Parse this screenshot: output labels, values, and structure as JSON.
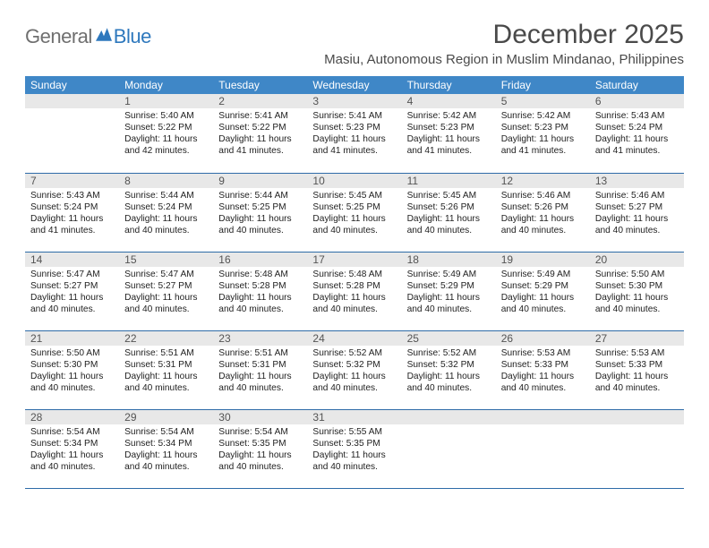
{
  "logo": {
    "text_general": "General",
    "text_blue": "Blue"
  },
  "title": "December 2025",
  "location": "Masiu, Autonomous Region in Muslim Mindanao, Philippines",
  "colors": {
    "header_blue": "#3f87c7",
    "border_blue": "#2e6ca8",
    "daynum_bg": "#e8e8e8",
    "logo_gray": "#6f6f6f",
    "logo_blue": "#2e78bd",
    "text": "#222222"
  },
  "weekdays": [
    "Sunday",
    "Monday",
    "Tuesday",
    "Wednesday",
    "Thursday",
    "Friday",
    "Saturday"
  ],
  "weeks": [
    [
      {
        "empty": true
      },
      {
        "day": "1",
        "sunrise": "Sunrise: 5:40 AM",
        "sunset": "Sunset: 5:22 PM",
        "daylight1": "Daylight: 11 hours",
        "daylight2": "and 42 minutes."
      },
      {
        "day": "2",
        "sunrise": "Sunrise: 5:41 AM",
        "sunset": "Sunset: 5:22 PM",
        "daylight1": "Daylight: 11 hours",
        "daylight2": "and 41 minutes."
      },
      {
        "day": "3",
        "sunrise": "Sunrise: 5:41 AM",
        "sunset": "Sunset: 5:23 PM",
        "daylight1": "Daylight: 11 hours",
        "daylight2": "and 41 minutes."
      },
      {
        "day": "4",
        "sunrise": "Sunrise: 5:42 AM",
        "sunset": "Sunset: 5:23 PM",
        "daylight1": "Daylight: 11 hours",
        "daylight2": "and 41 minutes."
      },
      {
        "day": "5",
        "sunrise": "Sunrise: 5:42 AM",
        "sunset": "Sunset: 5:23 PM",
        "daylight1": "Daylight: 11 hours",
        "daylight2": "and 41 minutes."
      },
      {
        "day": "6",
        "sunrise": "Sunrise: 5:43 AM",
        "sunset": "Sunset: 5:24 PM",
        "daylight1": "Daylight: 11 hours",
        "daylight2": "and 41 minutes."
      }
    ],
    [
      {
        "day": "7",
        "sunrise": "Sunrise: 5:43 AM",
        "sunset": "Sunset: 5:24 PM",
        "daylight1": "Daylight: 11 hours",
        "daylight2": "and 41 minutes."
      },
      {
        "day": "8",
        "sunrise": "Sunrise: 5:44 AM",
        "sunset": "Sunset: 5:24 PM",
        "daylight1": "Daylight: 11 hours",
        "daylight2": "and 40 minutes."
      },
      {
        "day": "9",
        "sunrise": "Sunrise: 5:44 AM",
        "sunset": "Sunset: 5:25 PM",
        "daylight1": "Daylight: 11 hours",
        "daylight2": "and 40 minutes."
      },
      {
        "day": "10",
        "sunrise": "Sunrise: 5:45 AM",
        "sunset": "Sunset: 5:25 PM",
        "daylight1": "Daylight: 11 hours",
        "daylight2": "and 40 minutes."
      },
      {
        "day": "11",
        "sunrise": "Sunrise: 5:45 AM",
        "sunset": "Sunset: 5:26 PM",
        "daylight1": "Daylight: 11 hours",
        "daylight2": "and 40 minutes."
      },
      {
        "day": "12",
        "sunrise": "Sunrise: 5:46 AM",
        "sunset": "Sunset: 5:26 PM",
        "daylight1": "Daylight: 11 hours",
        "daylight2": "and 40 minutes."
      },
      {
        "day": "13",
        "sunrise": "Sunrise: 5:46 AM",
        "sunset": "Sunset: 5:27 PM",
        "daylight1": "Daylight: 11 hours",
        "daylight2": "and 40 minutes."
      }
    ],
    [
      {
        "day": "14",
        "sunrise": "Sunrise: 5:47 AM",
        "sunset": "Sunset: 5:27 PM",
        "daylight1": "Daylight: 11 hours",
        "daylight2": "and 40 minutes."
      },
      {
        "day": "15",
        "sunrise": "Sunrise: 5:47 AM",
        "sunset": "Sunset: 5:27 PM",
        "daylight1": "Daylight: 11 hours",
        "daylight2": "and 40 minutes."
      },
      {
        "day": "16",
        "sunrise": "Sunrise: 5:48 AM",
        "sunset": "Sunset: 5:28 PM",
        "daylight1": "Daylight: 11 hours",
        "daylight2": "and 40 minutes."
      },
      {
        "day": "17",
        "sunrise": "Sunrise: 5:48 AM",
        "sunset": "Sunset: 5:28 PM",
        "daylight1": "Daylight: 11 hours",
        "daylight2": "and 40 minutes."
      },
      {
        "day": "18",
        "sunrise": "Sunrise: 5:49 AM",
        "sunset": "Sunset: 5:29 PM",
        "daylight1": "Daylight: 11 hours",
        "daylight2": "and 40 minutes."
      },
      {
        "day": "19",
        "sunrise": "Sunrise: 5:49 AM",
        "sunset": "Sunset: 5:29 PM",
        "daylight1": "Daylight: 11 hours",
        "daylight2": "and 40 minutes."
      },
      {
        "day": "20",
        "sunrise": "Sunrise: 5:50 AM",
        "sunset": "Sunset: 5:30 PM",
        "daylight1": "Daylight: 11 hours",
        "daylight2": "and 40 minutes."
      }
    ],
    [
      {
        "day": "21",
        "sunrise": "Sunrise: 5:50 AM",
        "sunset": "Sunset: 5:30 PM",
        "daylight1": "Daylight: 11 hours",
        "daylight2": "and 40 minutes."
      },
      {
        "day": "22",
        "sunrise": "Sunrise: 5:51 AM",
        "sunset": "Sunset: 5:31 PM",
        "daylight1": "Daylight: 11 hours",
        "daylight2": "and 40 minutes."
      },
      {
        "day": "23",
        "sunrise": "Sunrise: 5:51 AM",
        "sunset": "Sunset: 5:31 PM",
        "daylight1": "Daylight: 11 hours",
        "daylight2": "and 40 minutes."
      },
      {
        "day": "24",
        "sunrise": "Sunrise: 5:52 AM",
        "sunset": "Sunset: 5:32 PM",
        "daylight1": "Daylight: 11 hours",
        "daylight2": "and 40 minutes."
      },
      {
        "day": "25",
        "sunrise": "Sunrise: 5:52 AM",
        "sunset": "Sunset: 5:32 PM",
        "daylight1": "Daylight: 11 hours",
        "daylight2": "and 40 minutes."
      },
      {
        "day": "26",
        "sunrise": "Sunrise: 5:53 AM",
        "sunset": "Sunset: 5:33 PM",
        "daylight1": "Daylight: 11 hours",
        "daylight2": "and 40 minutes."
      },
      {
        "day": "27",
        "sunrise": "Sunrise: 5:53 AM",
        "sunset": "Sunset: 5:33 PM",
        "daylight1": "Daylight: 11 hours",
        "daylight2": "and 40 minutes."
      }
    ],
    [
      {
        "day": "28",
        "sunrise": "Sunrise: 5:54 AM",
        "sunset": "Sunset: 5:34 PM",
        "daylight1": "Daylight: 11 hours",
        "daylight2": "and 40 minutes."
      },
      {
        "day": "29",
        "sunrise": "Sunrise: 5:54 AM",
        "sunset": "Sunset: 5:34 PM",
        "daylight1": "Daylight: 11 hours",
        "daylight2": "and 40 minutes."
      },
      {
        "day": "30",
        "sunrise": "Sunrise: 5:54 AM",
        "sunset": "Sunset: 5:35 PM",
        "daylight1": "Daylight: 11 hours",
        "daylight2": "and 40 minutes."
      },
      {
        "day": "31",
        "sunrise": "Sunrise: 5:55 AM",
        "sunset": "Sunset: 5:35 PM",
        "daylight1": "Daylight: 11 hours",
        "daylight2": "and 40 minutes."
      },
      {
        "empty": true
      },
      {
        "empty": true
      },
      {
        "empty": true
      }
    ]
  ]
}
